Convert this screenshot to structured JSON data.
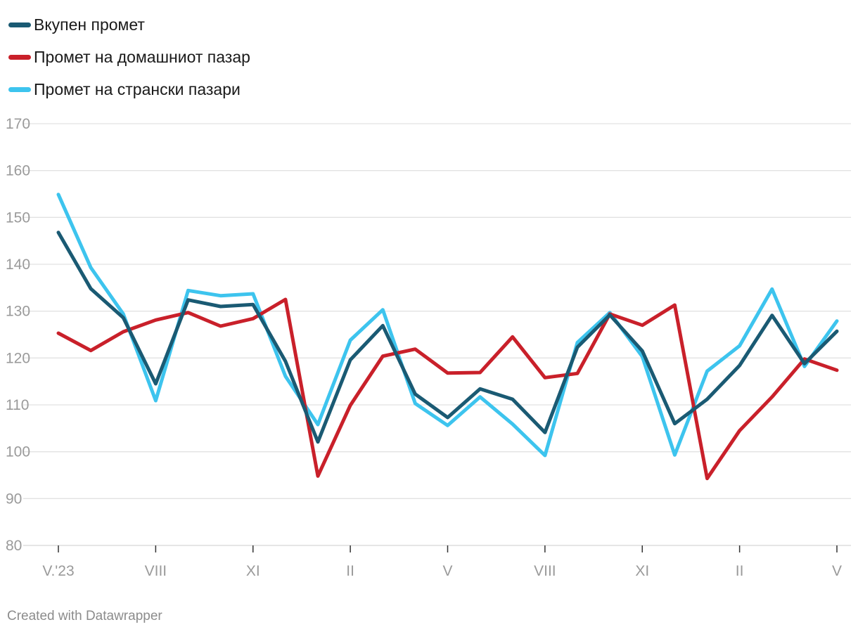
{
  "chart_data": {
    "type": "line",
    "title": "",
    "xlabel": "",
    "ylabel": "",
    "ylim": [
      80,
      170
    ],
    "y_ticks": [
      80,
      90,
      100,
      110,
      120,
      130,
      140,
      150,
      160,
      170
    ],
    "x_tick_labels": [
      "V.'23",
      "",
      "",
      "VIII",
      "",
      "",
      "XI",
      "",
      "",
      "II",
      "",
      "",
      "V",
      "",
      "",
      "VIII",
      "",
      "",
      "XI",
      "",
      "",
      "II",
      "",
      "",
      "V"
    ],
    "grid": true,
    "legend_position": "top-left",
    "series": [
      {
        "name": "Вкупен промет",
        "color": "#1a5a73",
        "values": [
          146.8,
          134.8,
          128.6,
          114.5,
          132.4,
          131.0,
          131.4,
          119.3,
          102.1,
          119.6,
          126.9,
          112.3,
          107.3,
          113.4,
          111.2,
          104.1,
          122.3,
          129.2,
          121.5,
          106.0,
          111.2,
          118.4,
          129.1,
          118.8,
          125.7
        ]
      },
      {
        "name": "Промет на домашниот пазар",
        "color": "#c9202a",
        "values": [
          125.3,
          121.6,
          125.6,
          128.1,
          129.7,
          126.8,
          128.4,
          132.5,
          94.8,
          109.9,
          120.4,
          121.9,
          116.8,
          116.9,
          124.5,
          115.8,
          116.7,
          129.4,
          127.0,
          131.3,
          94.3,
          104.5,
          111.7,
          119.8,
          117.4
        ]
      },
      {
        "name": "Промет на странски пазари",
        "color": "#3dc4ee",
        "values": [
          154.9,
          139.3,
          129.4,
          110.9,
          134.4,
          133.3,
          133.7,
          116.1,
          105.8,
          123.8,
          130.3,
          110.3,
          105.6,
          111.7,
          105.9,
          99.2,
          123.3,
          129.7,
          120.3,
          99.3,
          117.2,
          122.6,
          134.7,
          118.2,
          127.9
        ]
      }
    ]
  },
  "footer": {
    "credit": "Created with Datawrapper"
  }
}
